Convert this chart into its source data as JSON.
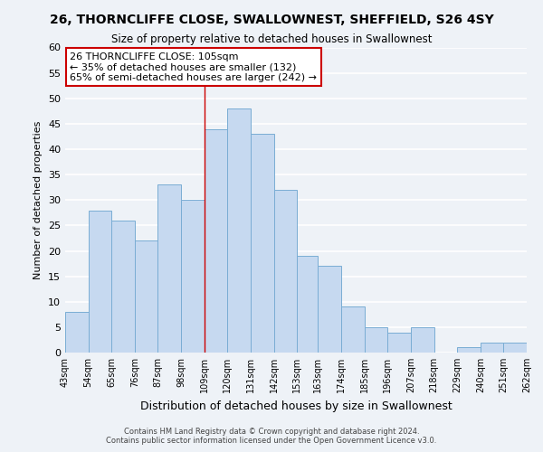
{
  "title": "26, THORNCLIFFE CLOSE, SWALLOWNEST, SHEFFIELD, S26 4SY",
  "subtitle": "Size of property relative to detached houses in Swallownest",
  "xlabel": "Distribution of detached houses by size in Swallownest",
  "ylabel": "Number of detached properties",
  "bar_color": "#c6d9f0",
  "bar_edge_color": "#7aadd4",
  "bins": [
    43,
    54,
    65,
    76,
    87,
    98,
    109,
    120,
    131,
    142,
    153,
    163,
    174,
    185,
    196,
    207,
    218,
    229,
    240,
    251,
    262
  ],
  "bin_labels": [
    "43sqm",
    "54sqm",
    "65sqm",
    "76sqm",
    "87sqm",
    "98sqm",
    "109sqm",
    "120sqm",
    "131sqm",
    "142sqm",
    "153sqm",
    "163sqm",
    "174sqm",
    "185sqm",
    "196sqm",
    "207sqm",
    "218sqm",
    "229sqm",
    "240sqm",
    "251sqm",
    "262sqm"
  ],
  "values": [
    8,
    28,
    26,
    22,
    33,
    30,
    44,
    48,
    43,
    32,
    19,
    17,
    9,
    5,
    4,
    5,
    0,
    1,
    2,
    2
  ],
  "ylim": [
    0,
    60
  ],
  "yticks": [
    0,
    5,
    10,
    15,
    20,
    25,
    30,
    35,
    40,
    45,
    50,
    55,
    60
  ],
  "annotation_title": "26 THORNCLIFFE CLOSE: 105sqm",
  "annotation_line1": "← 35% of detached houses are smaller (132)",
  "annotation_line2": "65% of semi-detached houses are larger (242) →",
  "annotation_box_color": "#ffffff",
  "annotation_box_edge": "#cc0000",
  "vline_x": 109,
  "vline_color": "#cc0000",
  "background_color": "#eef2f7",
  "grid_color": "#ffffff",
  "footer_line1": "Contains HM Land Registry data © Crown copyright and database right 2024.",
  "footer_line2": "Contains public sector information licensed under the Open Government Licence v3.0."
}
